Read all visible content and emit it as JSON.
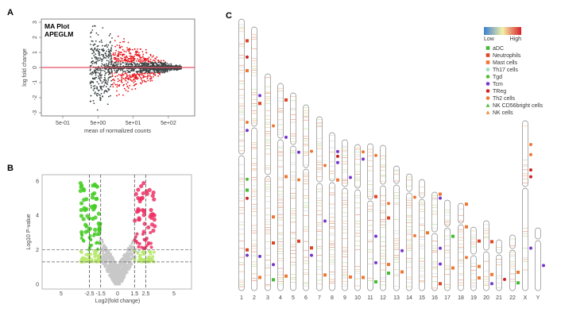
{
  "chart_data": [
    {
      "panel": "A",
      "type": "scatter",
      "title": "MA Plot",
      "subtitle": "APEGLM",
      "xlabel": "mean of normalized counts",
      "ylabel": "log fold change",
      "x_scale": "log",
      "x_ticks": [
        "5e-01",
        "5e+00",
        "5e+01",
        "5e+02"
      ],
      "y_ticks": [
        "3",
        "2",
        "1",
        "0",
        "-1",
        "-2",
        "-3"
      ],
      "ylim": [
        -3,
        3
      ],
      "series_colors": {
        "significant": "#e8141b",
        "not_significant": "#3c4444",
        "zero_line": "#e8506a"
      }
    },
    {
      "panel": "B",
      "type": "scatter",
      "xlabel": "Log2(fold change)",
      "ylabel": "Log10 P-value",
      "x_ticks": [
        "5",
        "-2.5",
        "-1.5",
        "0",
        "1.5",
        "2.5",
        "5"
      ],
      "y_ticks": [
        "0",
        "2",
        "4",
        "6"
      ],
      "ylim": [
        0,
        6.2
      ],
      "vlines": [
        -2.5,
        -1.5,
        1.5,
        2.5
      ],
      "hlines": [
        2,
        1.3
      ],
      "series_colors": {
        "down": "#44cc22",
        "down_weak": "#b6e86a",
        "up": "#ee3366",
        "up_weak": "#8fdc50",
        "ns": "#c8c8c8"
      }
    },
    {
      "panel": "C",
      "type": "chromosome-ideogram",
      "chromosomes": [
        "1",
        "2",
        "3",
        "4",
        "5",
        "6",
        "7",
        "8",
        "9",
        "10",
        "11",
        "12",
        "13",
        "14",
        "15",
        "16",
        "17",
        "18",
        "19",
        "20",
        "21",
        "22",
        "X",
        "Y"
      ],
      "colorbar": {
        "low": "Low",
        "high": "High"
      },
      "legend": [
        {
          "label": "aDC",
          "shape": "square",
          "color": "#44bb33"
        },
        {
          "label": "Neutrophils",
          "shape": "square",
          "color": "#dd4422"
        },
        {
          "label": "Mast cells",
          "shape": "square",
          "color": "#ee7733"
        },
        {
          "label": "Th17 cells",
          "shape": "circle",
          "color": "#99ddbb"
        },
        {
          "label": "Tgd",
          "shape": "circle",
          "color": "#55bb33"
        },
        {
          "label": "Tcm",
          "shape": "circle",
          "color": "#7733cc"
        },
        {
          "label": "TReg",
          "shape": "circle",
          "color": "#cc2222"
        },
        {
          "label": "Th2 cells",
          "shape": "circle",
          "color": "#ee7733"
        },
        {
          "label": "NK CD56bright cells",
          "shape": "triangle",
          "color": "#44bb33"
        },
        {
          "label": "NK cells",
          "shape": "triangle",
          "color": "#ee8833"
        }
      ],
      "markers": [
        {
          "chr": "1",
          "pos": 0.08,
          "type": "Neutrophils"
        },
        {
          "chr": "1",
          "pos": 0.14,
          "type": "TReg"
        },
        {
          "chr": "1",
          "pos": 0.19,
          "type": "Mast cells"
        },
        {
          "chr": "1",
          "pos": 0.38,
          "type": "Th2 cells"
        },
        {
          "chr": "1",
          "pos": 0.41,
          "type": "Tcm"
        },
        {
          "chr": "1",
          "pos": 0.59,
          "type": "Tgd"
        },
        {
          "chr": "1",
          "pos": 0.63,
          "type": "aDC"
        },
        {
          "chr": "1",
          "pos": 0.66,
          "type": "TReg"
        },
        {
          "chr": "1",
          "pos": 0.85,
          "type": "Neutrophils"
        },
        {
          "chr": "1",
          "pos": 0.87,
          "type": "Tcm"
        },
        {
          "chr": "2",
          "pos": 0.26,
          "type": "Tcm"
        },
        {
          "chr": "2",
          "pos": 0.29,
          "type": "Neutrophils"
        },
        {
          "chr": "2",
          "pos": 0.87,
          "type": "Tcm"
        },
        {
          "chr": "2",
          "pos": 0.95,
          "type": "Mast cells"
        },
        {
          "chr": "3",
          "pos": 0.24,
          "type": "Th2 cells"
        },
        {
          "chr": "3",
          "pos": 0.66,
          "type": "Mast cells"
        },
        {
          "chr": "3",
          "pos": 0.78,
          "type": "Neutrophils"
        },
        {
          "chr": "3",
          "pos": 0.88,
          "type": "Tcm"
        },
        {
          "chr": "3",
          "pos": 0.95,
          "type": "aDC"
        },
        {
          "chr": "4",
          "pos": 0.08,
          "type": "Neutrophils"
        },
        {
          "chr": "4",
          "pos": 0.26,
          "type": "Tcm"
        },
        {
          "chr": "4",
          "pos": 0.45,
          "type": "Mast cells"
        },
        {
          "chr": "4",
          "pos": 0.93,
          "type": "Mast cells"
        },
        {
          "chr": "5",
          "pos": 0.3,
          "type": "Tcm"
        },
        {
          "chr": "5",
          "pos": 0.44,
          "type": "Th2 cells"
        },
        {
          "chr": "5",
          "pos": 0.75,
          "type": "Neutrophils"
        },
        {
          "chr": "6",
          "pos": 0.25,
          "type": "Th2 cells"
        },
        {
          "chr": "6",
          "pos": 0.77,
          "type": "Neutrophils"
        },
        {
          "chr": "6",
          "pos": 0.81,
          "type": "Tcm"
        },
        {
          "chr": "7",
          "pos": 0.28,
          "type": "Th2 cells"
        },
        {
          "chr": "7",
          "pos": 0.6,
          "type": "Tcm"
        },
        {
          "chr": "7",
          "pos": 0.91,
          "type": "Mast cells"
        },
        {
          "chr": "8",
          "pos": 0.12,
          "type": "Tcm"
        },
        {
          "chr": "8",
          "pos": 0.15,
          "type": "TReg"
        },
        {
          "chr": "8",
          "pos": 0.19,
          "type": "Tcm"
        },
        {
          "chr": "8",
          "pos": 0.3,
          "type": "Mast cells"
        },
        {
          "chr": "9",
          "pos": 0.25,
          "type": "Tcm"
        },
        {
          "chr": "9",
          "pos": 0.91,
          "type": "Mast cells"
        },
        {
          "chr": "10",
          "pos": 0.05,
          "type": "Th2 cells"
        },
        {
          "chr": "10",
          "pos": 0.1,
          "type": "Tcm"
        },
        {
          "chr": "10",
          "pos": 0.91,
          "type": "Mast cells"
        },
        {
          "chr": "11",
          "pos": 0.08,
          "type": "Th2 cells"
        },
        {
          "chr": "11",
          "pos": 0.36,
          "type": "Neutrophils"
        },
        {
          "chr": "11",
          "pos": 0.63,
          "type": "Tcm"
        },
        {
          "chr": "11",
          "pos": 0.81,
          "type": "Tcm"
        },
        {
          "chr": "11",
          "pos": 0.94,
          "type": "aDC"
        },
        {
          "chr": "12",
          "pos": 0.4,
          "type": "Th2 cells"
        },
        {
          "chr": "12",
          "pos": 0.5,
          "type": "Neutrophils"
        },
        {
          "chr": "12",
          "pos": 0.82,
          "type": "Mast cells"
        },
        {
          "chr": "12",
          "pos": 0.88,
          "type": "aDC"
        },
        {
          "chr": "13",
          "pos": 0.68,
          "type": "Tcm"
        },
        {
          "chr": "13",
          "pos": 0.85,
          "type": "Mast cells"
        },
        {
          "chr": "14",
          "pos": 0.2,
          "type": "Th2 cells"
        },
        {
          "chr": "14",
          "pos": 0.53,
          "type": "Th2 cells"
        },
        {
          "chr": "15",
          "pos": 0.48,
          "type": "Mast cells"
        },
        {
          "chr": "16",
          "pos": 0.02,
          "type": "Mast cells"
        },
        {
          "chr": "16",
          "pos": 0.06,
          "type": "Tcm"
        },
        {
          "chr": "16",
          "pos": 0.57,
          "type": "Tcm"
        },
        {
          "chr": "16",
          "pos": 0.73,
          "type": "Tcm"
        },
        {
          "chr": "16",
          "pos": 0.93,
          "type": "Neutrophils"
        },
        {
          "chr": "17",
          "pos": 0.4,
          "type": "aDC"
        },
        {
          "chr": "17",
          "pos": 0.75,
          "type": "Mast cells"
        },
        {
          "chr": "18",
          "pos": 0.01,
          "type": "Mast cells"
        },
        {
          "chr": "18",
          "pos": 0.27,
          "type": "Mast cells"
        },
        {
          "chr": "18",
          "pos": 0.62,
          "type": "Th2 cells"
        },
        {
          "chr": "19",
          "pos": 0.22,
          "type": "Neutrophils"
        },
        {
          "chr": "19",
          "pos": 0.62,
          "type": "Mast cells"
        },
        {
          "chr": "19",
          "pos": 0.8,
          "type": "Mast cells"
        },
        {
          "chr": "20",
          "pos": 0.3,
          "type": "Neutrophils"
        },
        {
          "chr": "20",
          "pos": 0.77,
          "type": "Mast cells"
        },
        {
          "chr": "20",
          "pos": 0.9,
          "type": "Tcm"
        },
        {
          "chr": "21",
          "pos": 0.78,
          "type": "TReg"
        },
        {
          "chr": "22",
          "pos": 0.67,
          "type": "Mast cells"
        },
        {
          "chr": "22",
          "pos": 0.86,
          "type": "aDC"
        },
        {
          "chr": "X",
          "pos": 0.14,
          "type": "Th2 cells"
        },
        {
          "chr": "X",
          "pos": 0.2,
          "type": "Th2 cells"
        },
        {
          "chr": "X",
          "pos": 0.29,
          "type": "TReg"
        },
        {
          "chr": "X",
          "pos": 0.33,
          "type": "TReg"
        },
        {
          "chr": "X",
          "pos": 0.75,
          "type": "Tcm"
        },
        {
          "chr": "Y",
          "pos": 0.6,
          "type": "Tcm"
        }
      ]
    }
  ],
  "panels": {
    "a": "A",
    "b": "B",
    "c": "C"
  }
}
